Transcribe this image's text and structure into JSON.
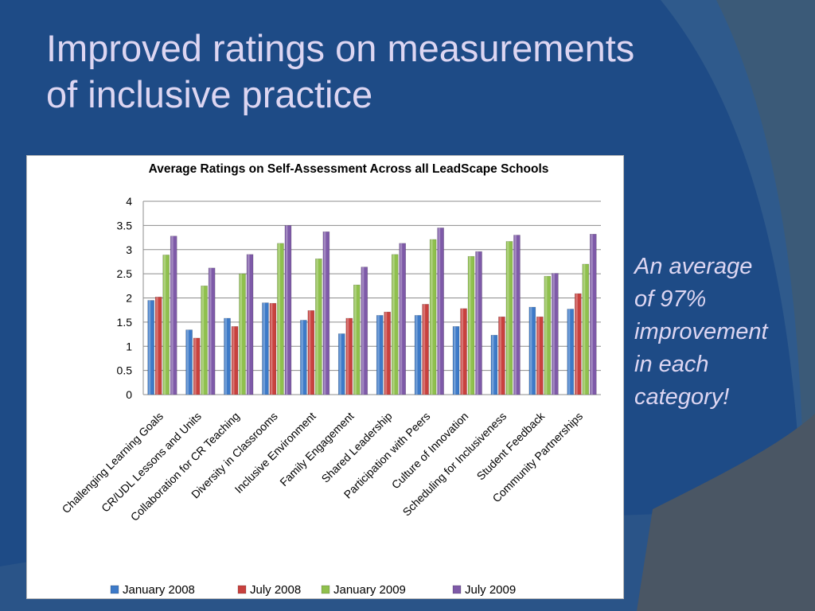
{
  "slide": {
    "title_line1": "Improved ratings on measurements",
    "title_line2": "of inclusive practice",
    "callout_lines": [
      "An average",
      "of 97%",
      "improvement",
      "in each",
      "category!"
    ]
  },
  "colors": {
    "background": "#1e4b86",
    "title_text": "#ddd6f2",
    "series": [
      "#3d7ac8",
      "#c8413e",
      "#8fc04d",
      "#7e5aa8"
    ]
  },
  "chart_data": {
    "type": "bar",
    "title": "Average Ratings on Self-Assessment Across all LeadScape Schools",
    "xlabel": "",
    "ylabel": "",
    "ylim": [
      0,
      4
    ],
    "yticks": [
      "0",
      "0.5",
      "1",
      "1.5",
      "2",
      "2.5",
      "3",
      "3.5",
      "4"
    ],
    "grid": true,
    "legend_position": "bottom",
    "categories": [
      "Challenging Learning Goals",
      "CR/UDL Lessons and Units",
      "Collaboration for CR Teaching",
      "Diversity in Classrooms",
      "Inclusive Environment",
      "Family Engagement",
      "Shared Leadership",
      "Participation with Peers",
      "Culture of Innovation",
      "Scheduling for Inclusiveness",
      "Student Feedback",
      "Community Partnerships"
    ],
    "series": [
      {
        "name": "January 2008",
        "color": "#3d7ac8",
        "values": [
          1.95,
          1.34,
          1.58,
          1.9,
          1.54,
          1.26,
          1.64,
          1.64,
          1.41,
          1.23,
          1.81,
          1.77
        ]
      },
      {
        "name": "July 2008",
        "color": "#c8413e",
        "values": [
          2.02,
          1.17,
          1.41,
          1.89,
          1.74,
          1.58,
          1.71,
          1.87,
          1.78,
          1.61,
          1.61,
          2.09
        ]
      },
      {
        "name": "January 2009",
        "color": "#8fc04d",
        "values": [
          2.89,
          2.25,
          2.5,
          3.13,
          2.81,
          2.27,
          2.9,
          3.21,
          2.86,
          3.17,
          2.45,
          2.7
        ]
      },
      {
        "name": "July 2009",
        "color": "#7e5aa8",
        "values": [
          3.28,
          2.62,
          2.9,
          3.5,
          3.37,
          2.64,
          3.13,
          3.45,
          2.96,
          3.3,
          2.51,
          3.32
        ]
      }
    ]
  }
}
